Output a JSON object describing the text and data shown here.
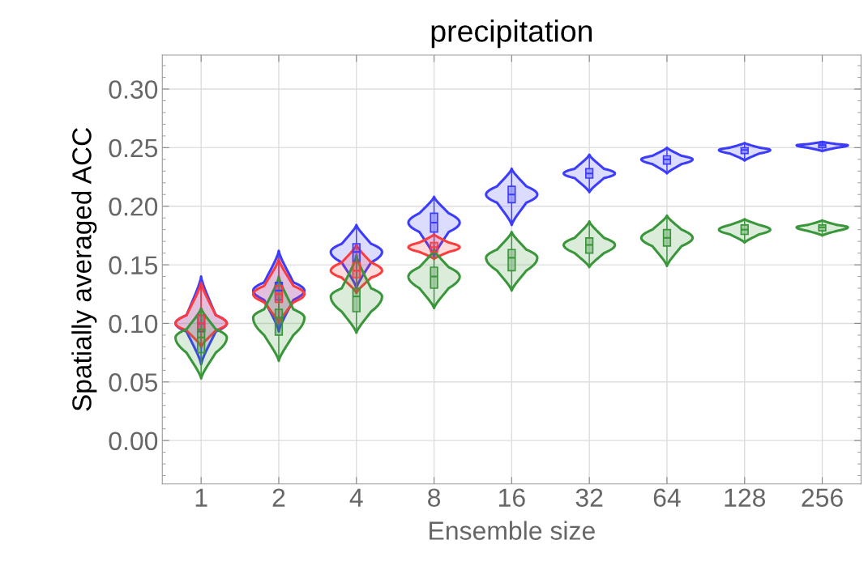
{
  "chart_data": {
    "type": "box",
    "title": "precipitation",
    "xlabel": "Ensemble size",
    "ylabel": "Spatially averaged ACC",
    "categories": [
      "1",
      "2",
      "4",
      "8",
      "16",
      "32",
      "64",
      "128",
      "256"
    ],
    "ylim": [
      -0.037,
      0.329
    ],
    "yticks": [
      {
        "value": 0.0,
        "label": "0.00"
      },
      {
        "value": 0.05,
        "label": "0.05"
      },
      {
        "value": 0.1,
        "label": "0.10"
      },
      {
        "value": 0.15,
        "label": "0.15"
      },
      {
        "value": 0.2,
        "label": "0.20"
      },
      {
        "value": 0.25,
        "label": "0.25"
      },
      {
        "value": 0.3,
        "label": "0.30"
      }
    ],
    "grid": true,
    "series": [
      {
        "color": "#3c3cff",
        "boxes": [
          {
            "low": 0.065,
            "q1": 0.093,
            "median": 0.1,
            "q3": 0.107,
            "high": 0.14
          },
          {
            "low": 0.093,
            "q1": 0.12,
            "median": 0.128,
            "q3": 0.135,
            "high": 0.162
          },
          {
            "low": 0.13,
            "q1": 0.152,
            "median": 0.161,
            "q3": 0.168,
            "high": 0.184
          },
          {
            "low": 0.157,
            "q1": 0.178,
            "median": 0.186,
            "q3": 0.194,
            "high": 0.208
          },
          {
            "low": 0.184,
            "q1": 0.203,
            "median": 0.21,
            "q3": 0.217,
            "high": 0.232
          },
          {
            "low": 0.212,
            "q1": 0.224,
            "median": 0.228,
            "q3": 0.232,
            "high": 0.244
          },
          {
            "low": 0.228,
            "q1": 0.236,
            "median": 0.24,
            "q3": 0.243,
            "high": 0.25
          },
          {
            "low": 0.239,
            "q1": 0.245,
            "median": 0.248,
            "q3": 0.25,
            "high": 0.254
          },
          {
            "low": 0.247,
            "q1": 0.25,
            "median": 0.252,
            "q3": 0.253,
            "high": 0.255
          }
        ]
      },
      {
        "color": "#ff3c3c",
        "boxes": [
          {
            "low": 0.08,
            "q1": 0.094,
            "median": 0.1,
            "q3": 0.107,
            "high": 0.135
          },
          {
            "low": 0.1,
            "q1": 0.118,
            "median": 0.125,
            "q3": 0.132,
            "high": 0.155
          },
          {
            "low": 0.126,
            "q1": 0.139,
            "median": 0.145,
            "q3": 0.152,
            "high": 0.167
          },
          {
            "low": 0.155,
            "q1": 0.161,
            "median": 0.165,
            "q3": 0.169,
            "high": 0.176
          },
          null,
          null,
          null,
          null,
          null
        ]
      },
      {
        "color": "#3a963a",
        "boxes": [
          {
            "low": 0.053,
            "q1": 0.075,
            "median": 0.088,
            "q3": 0.095,
            "high": 0.113
          },
          {
            "low": 0.068,
            "q1": 0.09,
            "median": 0.105,
            "q3": 0.112,
            "high": 0.14
          },
          {
            "low": 0.092,
            "q1": 0.11,
            "median": 0.123,
            "q3": 0.13,
            "high": 0.158
          },
          {
            "low": 0.113,
            "q1": 0.13,
            "median": 0.14,
            "q3": 0.148,
            "high": 0.163
          },
          {
            "low": 0.128,
            "q1": 0.145,
            "median": 0.156,
            "q3": 0.163,
            "high": 0.178
          },
          {
            "low": 0.148,
            "q1": 0.16,
            "median": 0.167,
            "q3": 0.173,
            "high": 0.187
          },
          {
            "low": 0.149,
            "q1": 0.166,
            "median": 0.173,
            "q3": 0.18,
            "high": 0.192
          },
          {
            "low": 0.169,
            "q1": 0.176,
            "median": 0.18,
            "q3": 0.184,
            "high": 0.189
          },
          {
            "low": 0.175,
            "q1": 0.179,
            "median": 0.182,
            "q3": 0.184,
            "high": 0.188
          }
        ]
      }
    ]
  }
}
